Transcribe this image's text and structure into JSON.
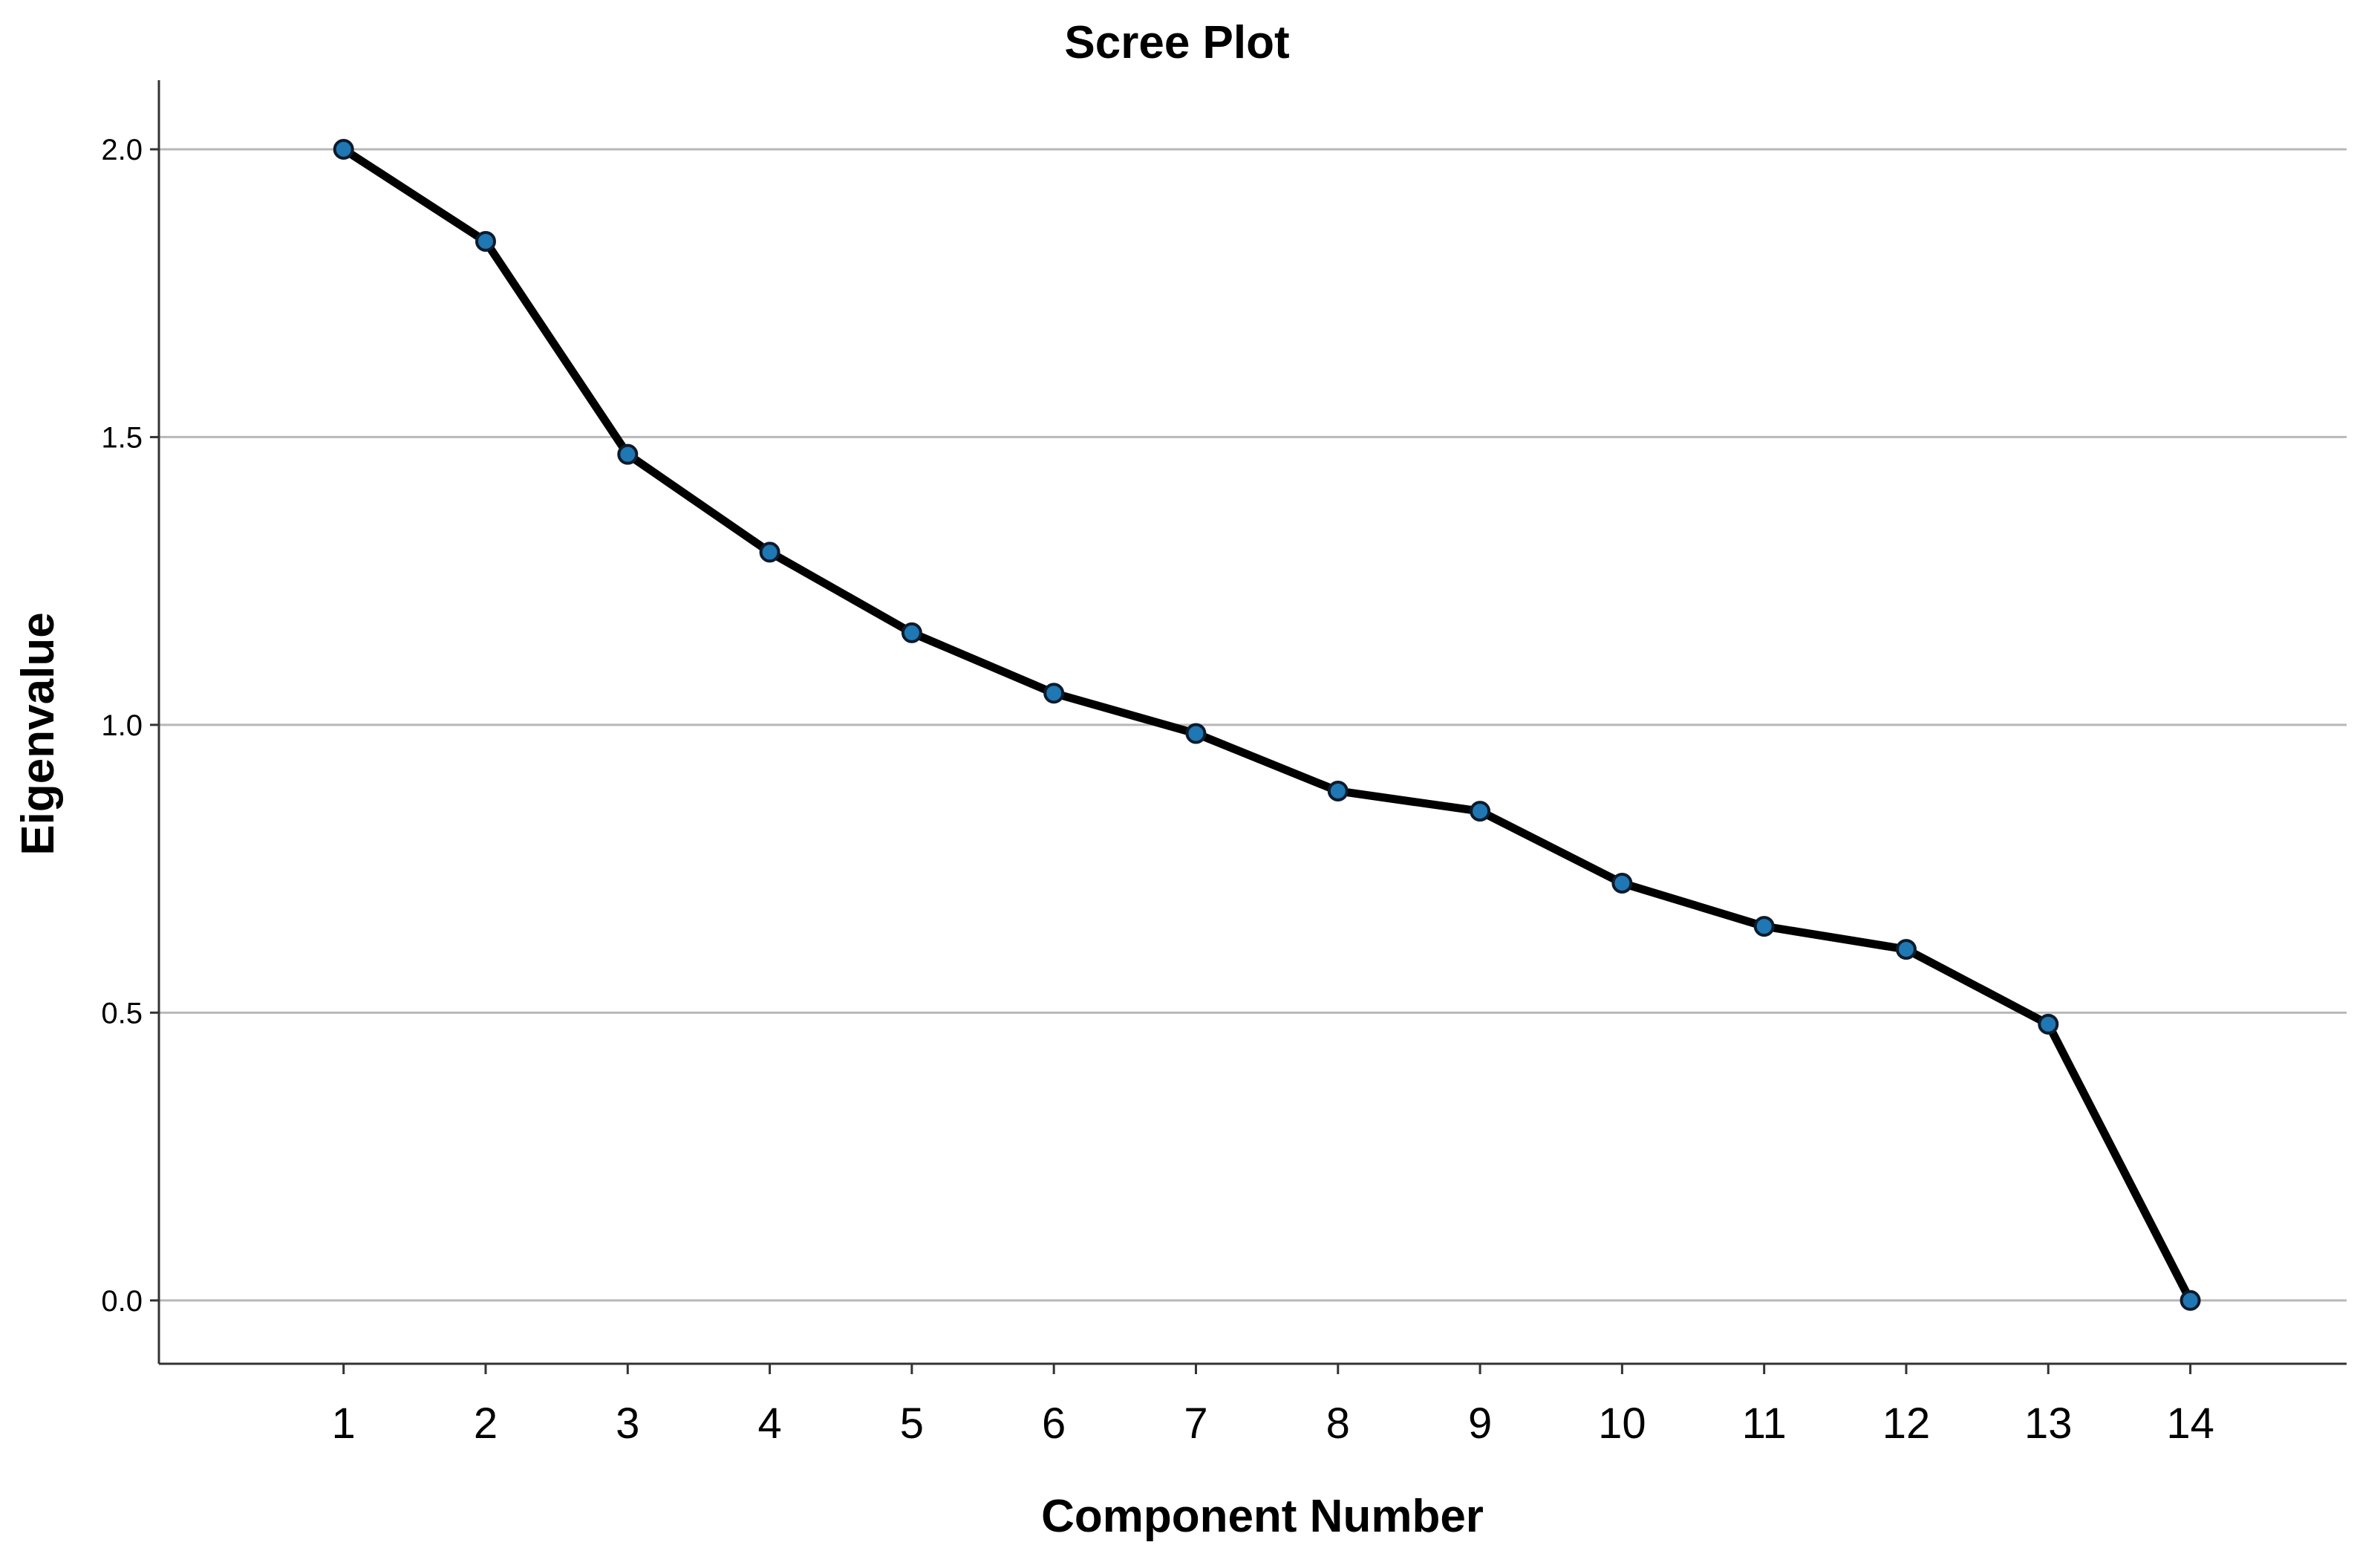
{
  "chart_data": {
    "type": "line",
    "title": "Scree Plot",
    "xlabel": "Component Number",
    "ylabel": "Eigenvalue",
    "x": [
      1,
      2,
      3,
      4,
      5,
      6,
      7,
      8,
      9,
      10,
      11,
      12,
      13,
      14
    ],
    "x_tick_labels": [
      "1",
      "2",
      "3",
      "4",
      "5",
      "6",
      "7",
      "8",
      "9",
      "10",
      "11",
      "12",
      "13",
      "14"
    ],
    "series": [
      {
        "values": [
          2.0,
          1.84,
          1.47,
          1.3,
          1.16,
          1.055,
          0.985,
          0.885,
          0.85,
          0.725,
          0.65,
          0.61,
          0.48,
          0.0
        ]
      }
    ],
    "y_ticks": [
      0.0,
      0.5,
      1.0,
      1.5,
      2.0
    ],
    "y_tick_labels": [
      "0.0",
      "0.5",
      "1.0",
      "1.5",
      "2.0"
    ],
    "ylim": [
      -0.11,
      2.12
    ],
    "xlim": [
      -0.3,
      15.1
    ],
    "grid": "horizontal",
    "legend": "none",
    "colors": {
      "line": "#000000",
      "marker_fill": "#1f77b4",
      "marker_edge": "#0d1b2a",
      "grid": "#b8b8b8",
      "axis": "#333333"
    }
  }
}
